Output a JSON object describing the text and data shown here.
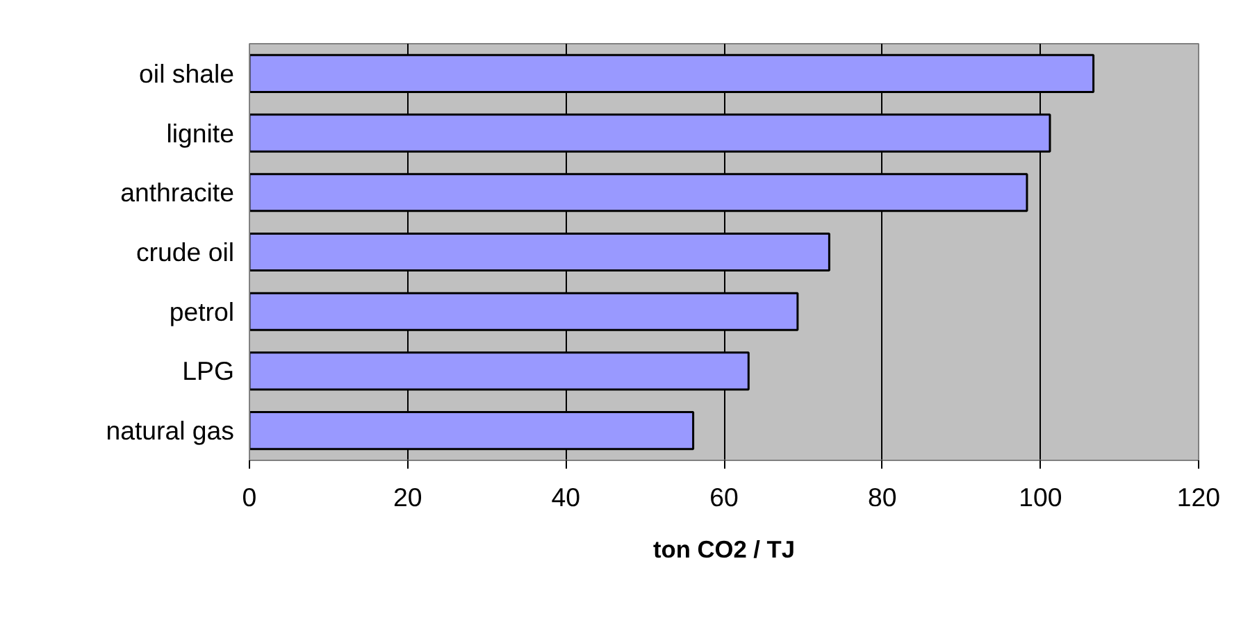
{
  "chart_data": {
    "type": "bar",
    "orientation": "horizontal",
    "xlabel": "ton CO2 / TJ",
    "categories": [
      "oil shale",
      "lignite",
      "anthracite",
      "crude oil",
      "petrol",
      "LPG",
      "natural gas"
    ],
    "values": [
      106.7,
      101.2,
      98.3,
      73.3,
      69.3,
      63.1,
      56.1
    ],
    "color": "#9999ff",
    "xlim": [
      0,
      120
    ],
    "xticks": [
      0,
      20,
      40,
      60,
      80,
      100,
      120
    ],
    "grid": "x"
  }
}
